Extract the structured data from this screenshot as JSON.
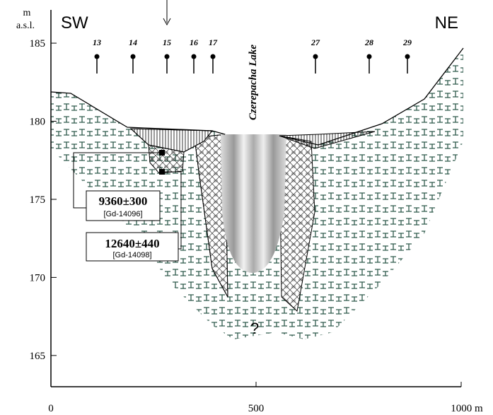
{
  "y_axis": {
    "unit": "m",
    "unit_note": "a.s.l.",
    "ticks": [
      165,
      170,
      175,
      180,
      185
    ],
    "lim": [
      163,
      185.5
    ]
  },
  "x_axis": {
    "ticks": [
      0,
      500,
      {
        "value": 1000,
        "label": "1000 m"
      }
    ],
    "lim": [
      0,
      1000
    ]
  },
  "directions": {
    "left": "SW",
    "right": "NE"
  },
  "boreholes": [
    "13",
    "14",
    "15",
    "16",
    "17",
    "27",
    "28",
    "29"
  ],
  "lake": "Czerepacha Lake",
  "dates": [
    {
      "age": "9360±300",
      "lab": "[Gd-14096]"
    },
    {
      "age": "12640±440",
      "lab": "[Gd-14098]"
    }
  ],
  "unknown": "?"
}
